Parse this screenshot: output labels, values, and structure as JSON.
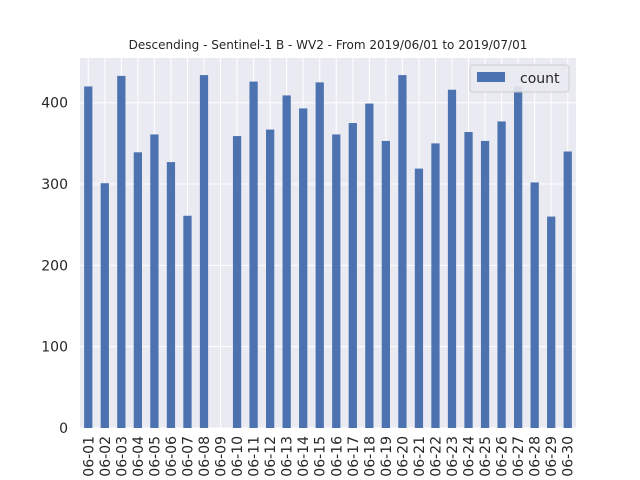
{
  "chart_data": {
    "type": "bar",
    "title": "Descending - Sentinel-1 B - WV2 - From 2019/06/01 to 2019/07/01",
    "xlabel": "",
    "ylabel": "",
    "ylim": [
      0,
      455
    ],
    "yticks": [
      0,
      100,
      200,
      300,
      400
    ],
    "grid": true,
    "legend_position": "top-right",
    "categories": [
      "06-01",
      "06-02",
      "06-03",
      "06-04",
      "06-05",
      "06-06",
      "06-07",
      "06-08",
      "06-09",
      "06-10",
      "06-11",
      "06-12",
      "06-13",
      "06-14",
      "06-15",
      "06-16",
      "06-17",
      "06-18",
      "06-19",
      "06-20",
      "06-21",
      "06-22",
      "06-23",
      "06-24",
      "06-25",
      "06-26",
      "06-27",
      "06-28",
      "06-29",
      "06-30"
    ],
    "series": [
      {
        "name": "count",
        "color": "#4c72b0",
        "values": [
          420,
          301,
          433,
          339,
          361,
          327,
          261,
          434,
          0,
          359,
          426,
          367,
          409,
          393,
          425,
          361,
          375,
          399,
          353,
          434,
          319,
          350,
          416,
          364,
          353,
          377,
          420,
          302,
          260,
          340
        ]
      }
    ]
  },
  "colors": {
    "plot_background": "#eaeaf2",
    "grid": "#ffffff",
    "bar": "#4c72b0",
    "text": "#262626"
  }
}
